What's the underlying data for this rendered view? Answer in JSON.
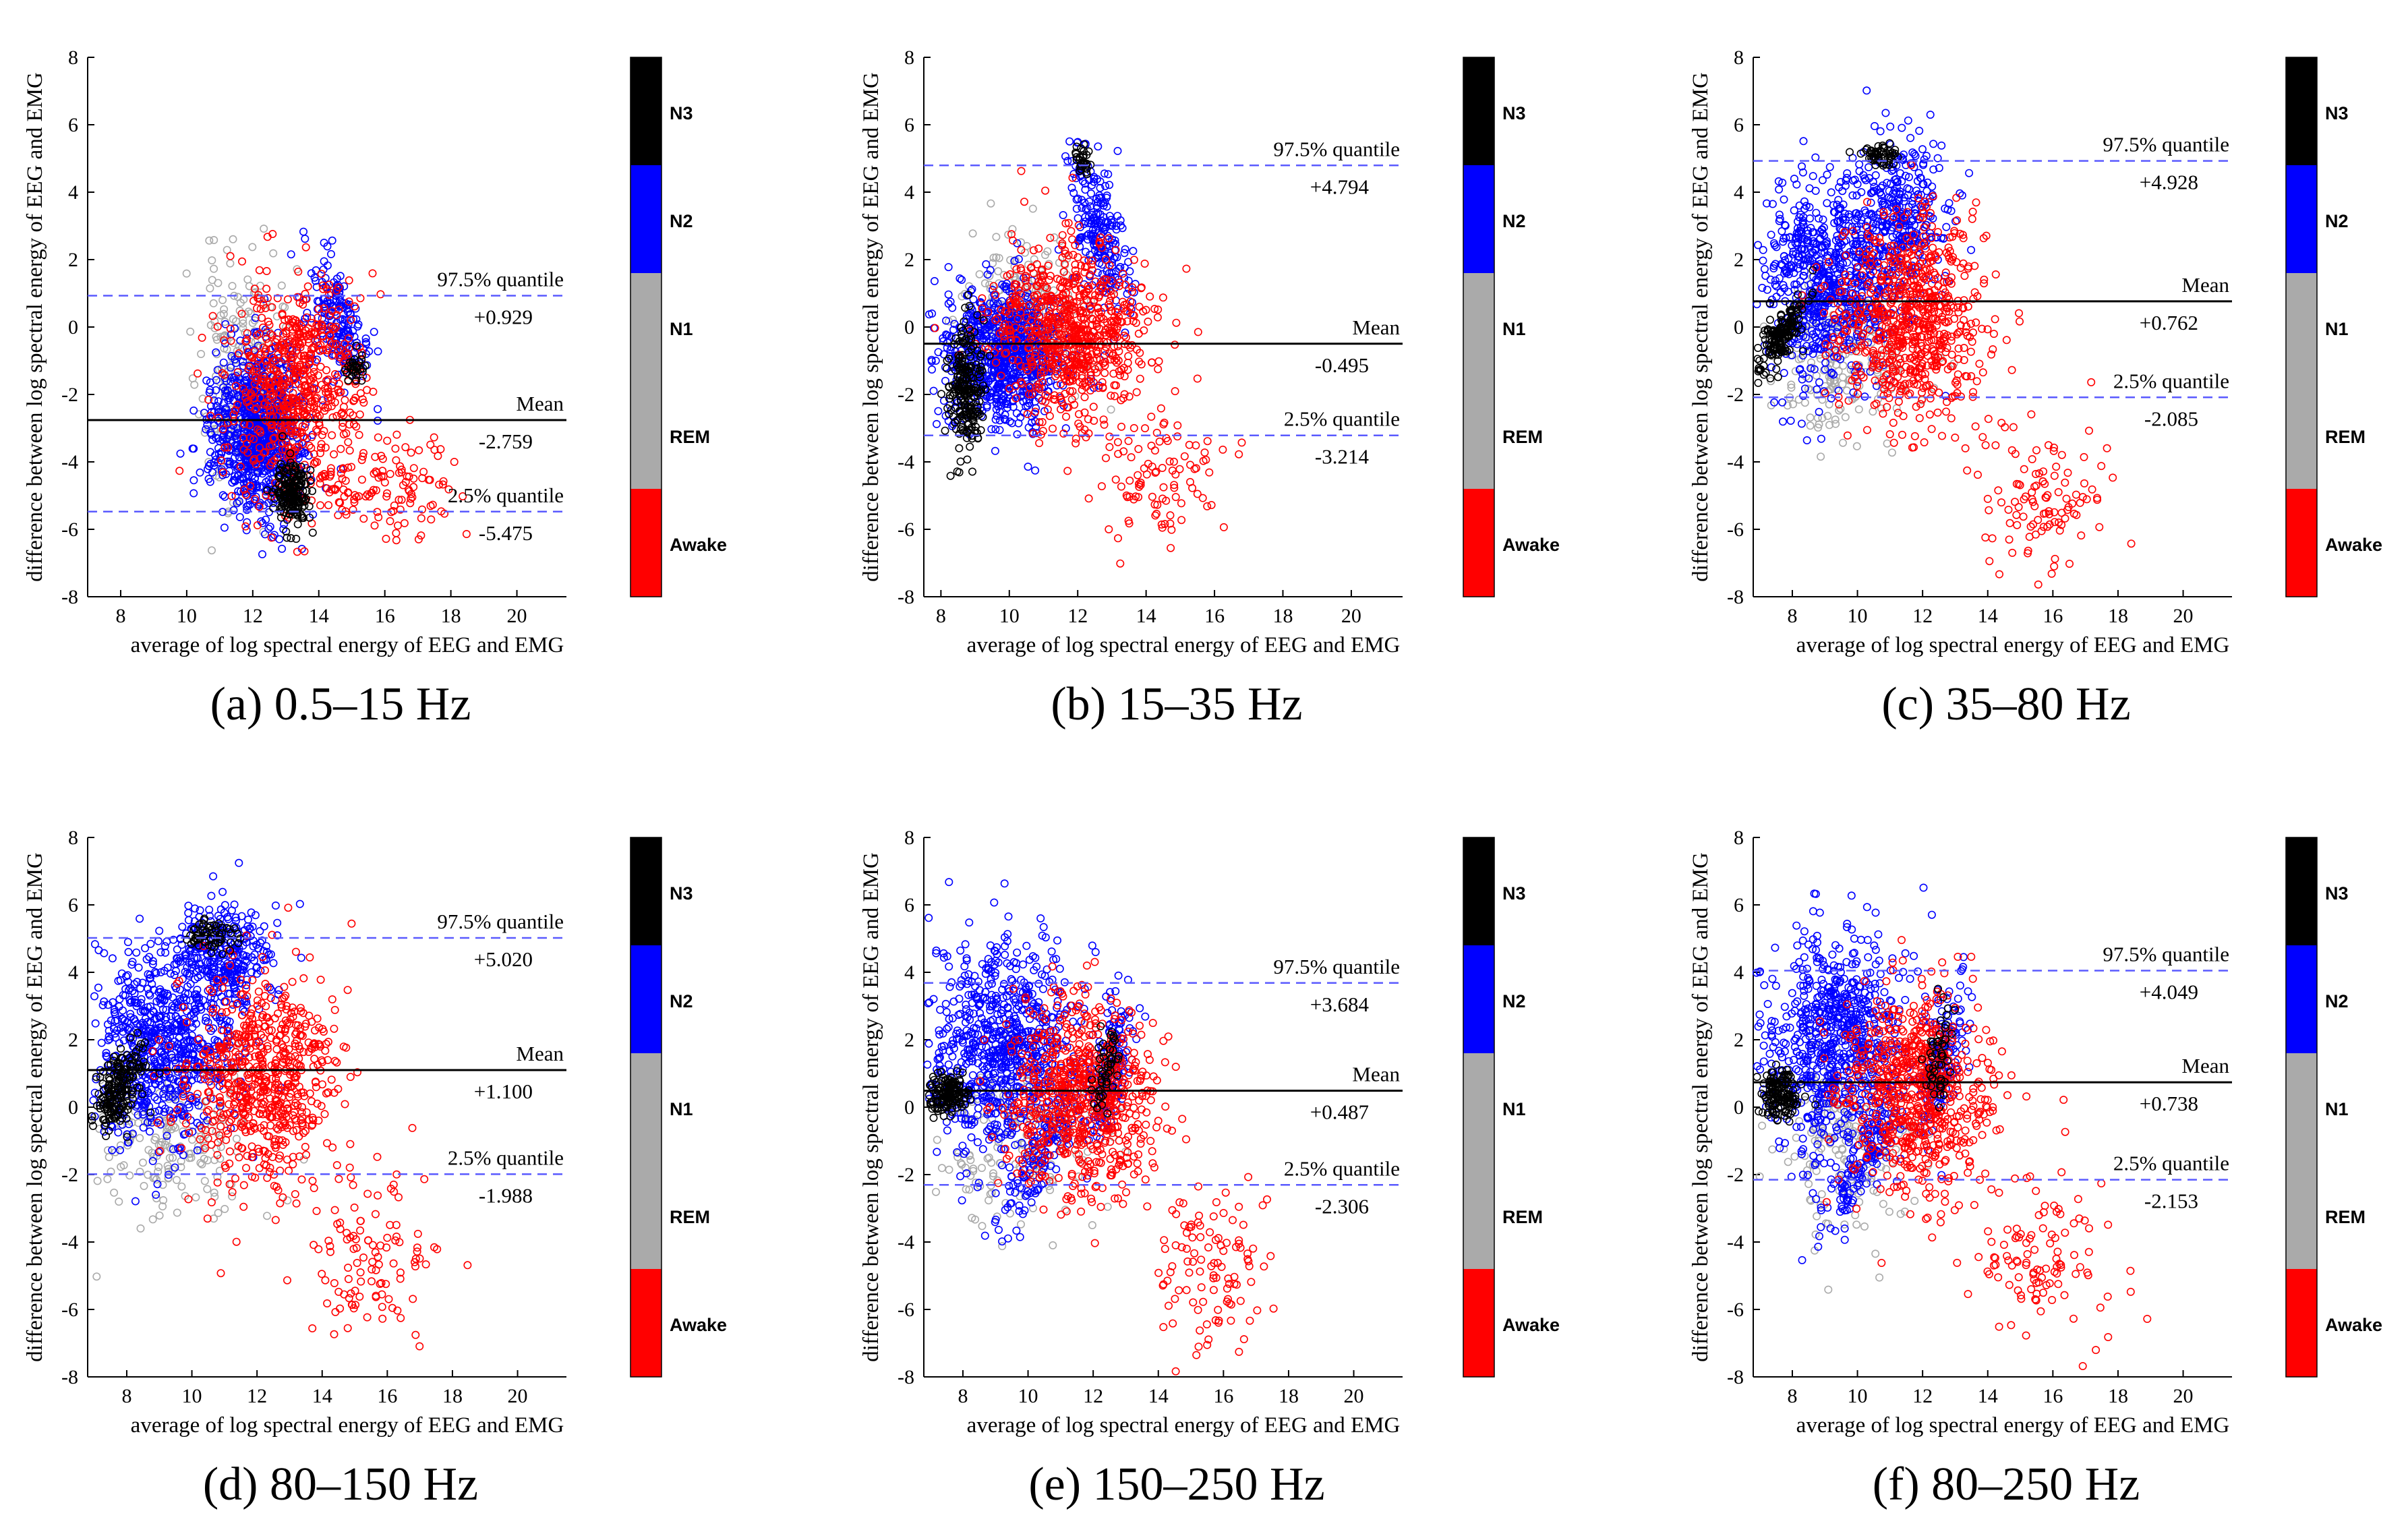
{
  "figure": {
    "x_label": "average of log spectral energy of EEG and EMG",
    "y_label": "difference between log spectral energy of EEG and EMG",
    "x_ticks": [
      "8",
      "10",
      "12",
      "14",
      "16",
      "18",
      "20"
    ],
    "y_ticks": [
      "8",
      "6",
      "4",
      "2",
      "0",
      "-2",
      "-4",
      "-6",
      "-8"
    ],
    "upper_label": "97.5% quantile",
    "mean_label": "Mean",
    "lower_label": "2.5% quantile",
    "colorbar_labels": [
      "N3",
      "N2",
      "N1",
      "REM",
      "Awake"
    ],
    "colors": {
      "N3": "#000000",
      "N2": "#0000ff",
      "N1": "#aaaaaa",
      "REM": "#aaaaaa",
      "Awake": "#ff0000",
      "limit_line": "#5a5aff",
      "mean_line": "#000000"
    }
  },
  "chart_data": [
    {
      "type": "scatter",
      "caption": "(a) 0.5–15 Hz",
      "xlim": [
        7,
        21.5
      ],
      "ylim": [
        -8,
        8
      ],
      "mean": -2.759,
      "mean_text": "-2.759",
      "upper": 0.929,
      "upper_text": "+0.929",
      "lower": -5.475,
      "lower_text": "-5.475",
      "clusters": [
        {
          "stage": "N1",
          "cx": 11.6,
          "cy": -1.5,
          "sx": 0.6,
          "sy": 1.8,
          "n": 220,
          "seed": 11
        },
        {
          "stage": "N2",
          "cx": 12.2,
          "cy": -3.0,
          "sx": 0.65,
          "sy": 1.2,
          "n": 900,
          "seed": 12
        },
        {
          "stage": "N2",
          "cx": 14.5,
          "cy": 0.3,
          "sx": 0.5,
          "sy": 0.8,
          "n": 180,
          "seed": 13,
          "diag": -1.3
        },
        {
          "stage": "N3",
          "cx": 13.2,
          "cy": -4.9,
          "sx": 0.25,
          "sy": 0.5,
          "n": 180,
          "seed": 14
        },
        {
          "stage": "N3",
          "cx": 15.1,
          "cy": -1.2,
          "sx": 0.15,
          "sy": 0.3,
          "n": 30,
          "seed": 15
        },
        {
          "stage": "Awake",
          "cx": 13.3,
          "cy": -1.8,
          "sx": 1.0,
          "sy": 1.6,
          "n": 650,
          "seed": 16
        },
        {
          "stage": "Awake",
          "cx": 16.2,
          "cy": -4.8,
          "sx": 1.0,
          "sy": 1.0,
          "n": 110,
          "seed": 17
        }
      ]
    },
    {
      "type": "scatter",
      "caption": "(b) 15–35 Hz",
      "xlim": [
        7.5,
        21.5
      ],
      "ylim": [
        -8,
        8
      ],
      "mean": -0.495,
      "mean_text": "-0.495",
      "upper": 4.794,
      "upper_text": "+4.794",
      "lower": -3.214,
      "lower_text": "-3.214",
      "clusters": [
        {
          "stage": "N1",
          "cx": 10.5,
          "cy": 0.5,
          "sx": 1.0,
          "sy": 1.2,
          "n": 200,
          "seed": 21
        },
        {
          "stage": "N2",
          "cx": 9.8,
          "cy": -0.8,
          "sx": 0.9,
          "sy": 1.0,
          "n": 800,
          "seed": 22
        },
        {
          "stage": "N2",
          "cx": 12.6,
          "cy": 2.8,
          "sx": 0.45,
          "sy": 1.0,
          "n": 220,
          "seed": 23,
          "diag": -1.5
        },
        {
          "stage": "N3",
          "cx": 8.7,
          "cy": -1.9,
          "sx": 0.25,
          "sy": 0.9,
          "n": 220,
          "seed": 24
        },
        {
          "stage": "N3",
          "cx": 12.1,
          "cy": 4.9,
          "sx": 0.12,
          "sy": 0.25,
          "n": 30,
          "seed": 25
        },
        {
          "stage": "Awake",
          "cx": 11.8,
          "cy": -0.2,
          "sx": 1.1,
          "sy": 1.3,
          "n": 750,
          "seed": 26
        },
        {
          "stage": "Awake",
          "cx": 14.6,
          "cy": -4.6,
          "sx": 0.9,
          "sy": 0.9,
          "n": 90,
          "seed": 27
        }
      ]
    },
    {
      "type": "scatter",
      "caption": "(c) 35–80 Hz",
      "xlim": [
        6.8,
        21.5
      ],
      "ylim": [
        -8,
        8
      ],
      "mean": 0.762,
      "mean_text": "+0.762",
      "upper": 4.928,
      "upper_text": "+4.928",
      "lower": -2.085,
      "lower_text": "-2.085",
      "clusters": [
        {
          "stage": "N1",
          "cx": 9.5,
          "cy": -1.0,
          "sx": 1.2,
          "sy": 1.2,
          "n": 200,
          "seed": 31
        },
        {
          "stage": "N2",
          "cx": 9.0,
          "cy": 1.2,
          "sx": 1.0,
          "sy": 1.4,
          "n": 700,
          "seed": 32
        },
        {
          "stage": "N2",
          "cx": 11.2,
          "cy": 3.2,
          "sx": 0.8,
          "sy": 1.2,
          "n": 350,
          "seed": 33
        },
        {
          "stage": "N3",
          "cx": 7.6,
          "cy": -0.3,
          "sx": 0.4,
          "sy": 0.4,
          "n": 160,
          "seed": 34,
          "diag": 1.0
        },
        {
          "stage": "N3",
          "cx": 10.7,
          "cy": 5.1,
          "sx": 0.3,
          "sy": 0.15,
          "n": 50,
          "seed": 35
        },
        {
          "stage": "Awake",
          "cx": 11.7,
          "cy": 0.2,
          "sx": 1.1,
          "sy": 1.5,
          "n": 700,
          "seed": 36
        },
        {
          "stage": "Awake",
          "cx": 15.8,
          "cy": -5.0,
          "sx": 0.9,
          "sy": 1.2,
          "n": 110,
          "seed": 37
        }
      ]
    },
    {
      "type": "scatter",
      "caption": "(d) 80–150 Hz",
      "xlim": [
        6.8,
        21.5
      ],
      "ylim": [
        -8,
        8
      ],
      "mean": 1.1,
      "mean_text": "+1.100",
      "upper": 5.02,
      "upper_text": "+5.020",
      "lower": -1.988,
      "lower_text": "-1.988",
      "clusters": [
        {
          "stage": "N1",
          "cx": 9.5,
          "cy": -1.0,
          "sx": 1.2,
          "sy": 1.2,
          "n": 180,
          "seed": 41
        },
        {
          "stage": "N2",
          "cx": 9.0,
          "cy": 1.8,
          "sx": 1.1,
          "sy": 1.4,
          "n": 700,
          "seed": 42
        },
        {
          "stage": "N2",
          "cx": 11.0,
          "cy": 4.3,
          "sx": 0.7,
          "sy": 0.9,
          "n": 300,
          "seed": 43
        },
        {
          "stage": "N3",
          "cx": 7.7,
          "cy": 0.4,
          "sx": 0.4,
          "sy": 0.5,
          "n": 180,
          "seed": 44,
          "diag": 1.0
        },
        {
          "stage": "N3",
          "cx": 10.6,
          "cy": 5.1,
          "sx": 0.4,
          "sy": 0.2,
          "n": 60,
          "seed": 45
        },
        {
          "stage": "Awake",
          "cx": 12.2,
          "cy": 0.8,
          "sx": 1.1,
          "sy": 1.5,
          "n": 650,
          "seed": 46
        },
        {
          "stage": "Awake",
          "cx": 15.6,
          "cy": -4.5,
          "sx": 0.9,
          "sy": 1.3,
          "n": 110,
          "seed": 47
        }
      ]
    },
    {
      "type": "scatter",
      "caption": "(e) 150–250 Hz",
      "xlim": [
        6.8,
        21.5
      ],
      "ylim": [
        -8,
        8
      ],
      "mean": 0.487,
      "mean_text": "+0.487",
      "upper": 3.684,
      "upper_text": "+3.684",
      "lower": -2.306,
      "lower_text": "-2.306",
      "clusters": [
        {
          "stage": "N1",
          "cx": 9.5,
          "cy": -1.0,
          "sx": 1.2,
          "sy": 1.3,
          "n": 180,
          "seed": 51
        },
        {
          "stage": "N2",
          "cx": 9.2,
          "cy": 1.8,
          "sx": 1.1,
          "sy": 1.6,
          "n": 750,
          "seed": 52
        },
        {
          "stage": "N2",
          "cx": 10.3,
          "cy": -1.6,
          "sx": 0.6,
          "sy": 0.5,
          "n": 120,
          "seed": 53,
          "diag": 1.5
        },
        {
          "stage": "N2",
          "cx": 12.5,
          "cy": 1.0,
          "sx": 0.35,
          "sy": 0.9,
          "n": 150,
          "seed": 54,
          "diag": 2.0
        },
        {
          "stage": "N3",
          "cx": 7.5,
          "cy": 0.4,
          "sx": 0.3,
          "sy": 0.3,
          "n": 140,
          "seed": 55
        },
        {
          "stage": "N3",
          "cx": 12.4,
          "cy": 1.0,
          "sx": 0.2,
          "sy": 0.6,
          "n": 50,
          "seed": 56,
          "diag": 2.0
        },
        {
          "stage": "Awake",
          "cx": 11.6,
          "cy": 0.3,
          "sx": 1.1,
          "sy": 1.4,
          "n": 700,
          "seed": 57
        },
        {
          "stage": "Awake",
          "cx": 15.5,
          "cy": -4.8,
          "sx": 0.9,
          "sy": 1.3,
          "n": 110,
          "seed": 58
        }
      ]
    },
    {
      "type": "scatter",
      "caption": "(f) 80–250 Hz",
      "xlim": [
        6.8,
        21.5
      ],
      "ylim": [
        -8,
        8
      ],
      "mean": 0.738,
      "mean_text": "+0.738",
      "upper": 4.049,
      "upper_text": "+4.049",
      "lower": -2.153,
      "lower_text": "-2.153",
      "clusters": [
        {
          "stage": "N1",
          "cx": 9.5,
          "cy": -1.0,
          "sx": 1.2,
          "sy": 1.3,
          "n": 180,
          "seed": 61
        },
        {
          "stage": "N2",
          "cx": 9.3,
          "cy": 1.8,
          "sx": 1.1,
          "sy": 1.6,
          "n": 750,
          "seed": 62
        },
        {
          "stage": "N2",
          "cx": 10.2,
          "cy": -1.6,
          "sx": 0.6,
          "sy": 0.5,
          "n": 120,
          "seed": 63,
          "diag": 1.5
        },
        {
          "stage": "N2",
          "cx": 12.6,
          "cy": 1.3,
          "sx": 0.35,
          "sy": 0.9,
          "n": 150,
          "seed": 64,
          "diag": 2.0
        },
        {
          "stage": "N3",
          "cx": 7.6,
          "cy": 0.4,
          "sx": 0.3,
          "sy": 0.35,
          "n": 140,
          "seed": 65
        },
        {
          "stage": "N3",
          "cx": 12.5,
          "cy": 1.5,
          "sx": 0.2,
          "sy": 0.6,
          "n": 50,
          "seed": 66,
          "diag": 2.0
        },
        {
          "stage": "Awake",
          "cx": 11.8,
          "cy": 0.5,
          "sx": 1.1,
          "sy": 1.4,
          "n": 700,
          "seed": 67
        },
        {
          "stage": "Awake",
          "cx": 15.6,
          "cy": -4.6,
          "sx": 1.0,
          "sy": 1.3,
          "n": 110,
          "seed": 68
        }
      ]
    }
  ]
}
